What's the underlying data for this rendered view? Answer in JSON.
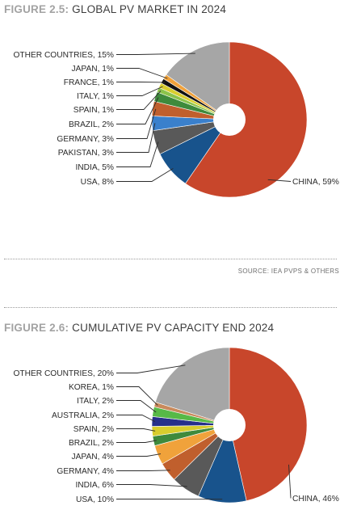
{
  "figures": [
    {
      "number": "FIGURE 2.5:",
      "title": "GLOBAL PV MARKET IN 2024"
    },
    {
      "number": "FIGURE 2.6:",
      "title": "CUMULATIVE PV CAPACITY END 2024"
    }
  ],
  "source_text": "SOURCE:  IEA PVPS & OTHERS",
  "chart_data": [
    {
      "type": "pie",
      "title": "FIGURE 2.5: GLOBAL PV MARKET IN 2024",
      "unit": "%",
      "start_angle_deg": 0,
      "clockwise": true,
      "slices": [
        {
          "label": "CHINA",
          "value": 59,
          "text": "CHINA, 59%",
          "color": "#c8462b"
        },
        {
          "label": "USA",
          "value": 8,
          "text": "USA, 8%",
          "color": "#18538c"
        },
        {
          "label": "INDIA",
          "value": 5,
          "text": "INDIA, 5%",
          "color": "#595959"
        },
        {
          "label": "PAKISTAN",
          "value": 3,
          "text": "PAKISTAN, 3%",
          "color": "#3a80cc"
        },
        {
          "label": "GERMANY",
          "value": 3,
          "text": "GERMANY, 3%",
          "color": "#c05f2d"
        },
        {
          "label": "BRAZIL",
          "value": 2,
          "text": "BRAZIL, 2%",
          "color": "#3e8a3c"
        },
        {
          "label": "SPAIN",
          "value": 1,
          "text": "SPAIN, 1%",
          "color": "#8bc34a"
        },
        {
          "label": "ITALY",
          "value": 1,
          "text": "ITALY, 1%",
          "color": "#d8cd2e"
        },
        {
          "label": "FRANCE",
          "value": 1,
          "text": "FRANCE, 1%",
          "color": "#111111"
        },
        {
          "label": "JAPAN",
          "value": 1,
          "text": "JAPAN, 1%",
          "color": "#f0a23b"
        },
        {
          "label": "OTHER COUNTRIES",
          "value": 15,
          "text": "OTHER COUNTRIES, 15%",
          "color": "#a6a6a6"
        }
      ]
    },
    {
      "type": "pie",
      "title": "FIGURE 2.6: CUMULATIVE PV CAPACITY END 2024",
      "unit": "%",
      "start_angle_deg": 0,
      "clockwise": true,
      "slices": [
        {
          "label": "CHINA",
          "value": 46,
          "text": "CHINA, 46%",
          "color": "#c8462b"
        },
        {
          "label": "USA",
          "value": 10,
          "text": "USA, 10%",
          "color": "#18538c"
        },
        {
          "label": "INDIA",
          "value": 6,
          "text": "INDIA, 6%",
          "color": "#595959"
        },
        {
          "label": "GERMANY",
          "value": 4,
          "text": "GERMANY, 4%",
          "color": "#c05f2d"
        },
        {
          "label": "JAPAN",
          "value": 4,
          "text": "JAPAN, 4%",
          "color": "#f0a23b"
        },
        {
          "label": "BRAZIL",
          "value": 2,
          "text": "BRAZIL, 2%",
          "color": "#3e8a3c"
        },
        {
          "label": "SPAIN",
          "value": 2,
          "text": "SPAIN, 2%",
          "color": "#d8cd2e"
        },
        {
          "label": "AUSTRALIA",
          "value": 2,
          "text": "AUSTRALIA, 2%",
          "color": "#27308a"
        },
        {
          "label": "ITALY",
          "value": 2,
          "text": "ITALY, 2%",
          "color": "#57b947"
        },
        {
          "label": "KOREA",
          "value": 1,
          "text": "KOREA, 1%",
          "color": "#c98a5c"
        },
        {
          "label": "OTHER COUNTRIES",
          "value": 20,
          "text": "OTHER COUNTRIES, 20%",
          "color": "#a6a6a6"
        }
      ]
    }
  ]
}
